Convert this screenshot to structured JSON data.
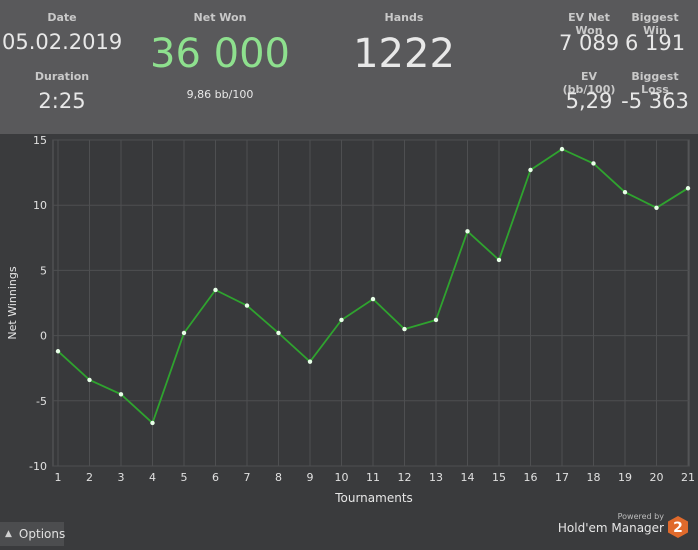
{
  "header": {
    "date_label": "Date",
    "date_value": "05.02.2019",
    "duration_label": "Duration",
    "duration_value": "2:25",
    "net_won_label": "Net Won",
    "net_won_value": "36 000",
    "net_won_sub": "9,86 bb/100",
    "hands_label": "Hands",
    "hands_value": "1222",
    "ev_net_won_label": "EV Net Won",
    "ev_net_won_value": "7 089",
    "biggest_win_label": "Biggest Win",
    "biggest_win_value": "6 191",
    "ev_bb100_label": "EV (bb/100)",
    "ev_bb100_value": "5,29",
    "biggest_loss_label": "Biggest Loss",
    "biggest_loss_value": "-5 363"
  },
  "colors": {
    "net_won": "#8ee08e",
    "line": "#2fa32f",
    "point": "#e8ffe8"
  },
  "chart_data": {
    "type": "line",
    "xlabel": "Tournaments",
    "ylabel": "Net Winnings",
    "ylim": [
      -10,
      15
    ],
    "xlim": [
      1,
      21
    ],
    "yticks": [
      -10,
      -5,
      0,
      5,
      10,
      15
    ],
    "x": [
      1,
      2,
      3,
      4,
      5,
      6,
      7,
      8,
      9,
      10,
      11,
      12,
      13,
      14,
      15,
      16,
      17,
      18,
      19,
      20,
      21
    ],
    "values": [
      -1.2,
      -3.4,
      -4.5,
      -6.7,
      0.2,
      3.5,
      2.3,
      0.2,
      -2.0,
      1.2,
      2.8,
      0.5,
      1.2,
      8.0,
      5.8,
      12.7,
      14.3,
      13.2,
      11.0,
      9.8,
      11.3
    ],
    "grid": true
  },
  "footer": {
    "options_label": "Options",
    "powered_by": "Powered by",
    "brand": "Hold'em Manager",
    "logo_digit": "2"
  }
}
